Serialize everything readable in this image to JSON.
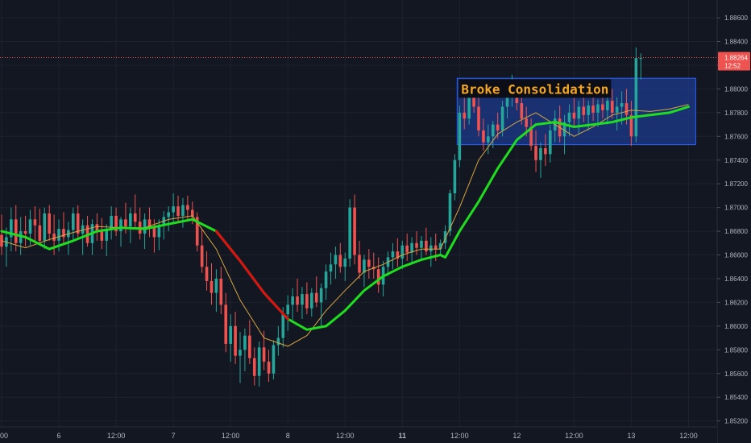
{
  "chart_data": {
    "type": "candlestick",
    "title": "",
    "y_axis": {
      "position": "right",
      "ylim": [
        1.8515,
        1.8875
      ],
      "ticks": [
        "1.88600",
        "1.88400",
        "1.88200",
        "1.88000",
        "1.87800",
        "1.87600",
        "1.87400",
        "1.87200",
        "1.87000",
        "1.86800",
        "1.86600",
        "1.86400",
        "1.86200",
        "1.86000",
        "1.85800",
        "1.85600",
        "1.85400",
        "1.85200"
      ]
    },
    "x_axis": {
      "ticks": [
        {
          "label": "00",
          "t": 0,
          "bold": false
        },
        {
          "label": "6",
          "t": 12,
          "bold": false
        },
        {
          "label": "12:00",
          "t": 24,
          "bold": false
        },
        {
          "label": "7",
          "t": 36,
          "bold": false
        },
        {
          "label": "12:00",
          "t": 48,
          "bold": false
        },
        {
          "label": "8",
          "t": 60,
          "bold": false
        },
        {
          "label": "12:00",
          "t": 72,
          "bold": false
        },
        {
          "label": "11",
          "t": 84,
          "bold": true
        },
        {
          "label": "12:00",
          "t": 96,
          "bold": false
        },
        {
          "label": "12",
          "t": 108,
          "bold": false
        },
        {
          "label": "12:00",
          "t": 120,
          "bold": false
        },
        {
          "label": "13",
          "t": 132,
          "bold": false
        },
        {
          "label": "12:00",
          "t": 144,
          "bold": false
        }
      ]
    },
    "grid": true,
    "last_price": {
      "value": "1.88264",
      "countdown": "12:52"
    },
    "ohlc": [
      [
        1.8677,
        1.8694,
        1.866,
        1.8667
      ],
      [
        1.8667,
        1.8683,
        1.865,
        1.8675
      ],
      [
        1.8675,
        1.87,
        1.8663,
        1.869
      ],
      [
        1.869,
        1.8702,
        1.8663,
        1.867
      ],
      [
        1.867,
        1.8692,
        1.866,
        1.868
      ],
      [
        1.868,
        1.8693,
        1.8667,
        1.8678
      ],
      [
        1.8678,
        1.8698,
        1.8668,
        1.869
      ],
      [
        1.869,
        1.8701,
        1.8672,
        1.8685
      ],
      [
        1.8685,
        1.8699,
        1.8668,
        1.8672
      ],
      [
        1.8672,
        1.87,
        1.8665,
        1.8695
      ],
      [
        1.8695,
        1.8702,
        1.8672,
        1.8678
      ],
      [
        1.8678,
        1.8694,
        1.866,
        1.8672
      ],
      [
        1.8672,
        1.869,
        1.8663,
        1.8682
      ],
      [
        1.8682,
        1.8696,
        1.867,
        1.8675
      ],
      [
        1.8675,
        1.8688,
        1.866,
        1.8681
      ],
      [
        1.8681,
        1.87,
        1.8673,
        1.8695
      ],
      [
        1.8695,
        1.8702,
        1.8675,
        1.8678
      ],
      [
        1.8678,
        1.869,
        1.866,
        1.8685
      ],
      [
        1.8685,
        1.8693,
        1.8667,
        1.867
      ],
      [
        1.867,
        1.869,
        1.866,
        1.8686
      ],
      [
        1.8686,
        1.8695,
        1.8672,
        1.868
      ],
      [
        1.868,
        1.8691,
        1.8665,
        1.8672
      ],
      [
        1.8672,
        1.8686,
        1.8659,
        1.8682
      ],
      [
        1.8682,
        1.8701,
        1.8673,
        1.8693
      ],
      [
        1.8693,
        1.87,
        1.8676,
        1.868
      ],
      [
        1.868,
        1.8692,
        1.8667,
        1.869
      ],
      [
        1.869,
        1.8704,
        1.8678,
        1.8684
      ],
      [
        1.8684,
        1.87,
        1.867,
        1.8695
      ],
      [
        1.8695,
        1.8711,
        1.8682,
        1.8688
      ],
      [
        1.8688,
        1.87,
        1.8673,
        1.8678
      ],
      [
        1.8678,
        1.8695,
        1.8665,
        1.869
      ],
      [
        1.869,
        1.87,
        1.8675,
        1.8683
      ],
      [
        1.8683,
        1.869,
        1.8662,
        1.8675
      ],
      [
        1.8675,
        1.869,
        1.8664,
        1.8685
      ],
      [
        1.8685,
        1.8697,
        1.8673,
        1.8692
      ],
      [
        1.8692,
        1.8701,
        1.868,
        1.8696
      ],
      [
        1.8696,
        1.8712,
        1.8686,
        1.8701
      ],
      [
        1.8701,
        1.871,
        1.8688,
        1.8693
      ],
      [
        1.8693,
        1.8708,
        1.8683,
        1.8702
      ],
      [
        1.8702,
        1.871,
        1.869,
        1.8698
      ],
      [
        1.8698,
        1.8705,
        1.8686,
        1.8692
      ],
      [
        1.8692,
        1.8696,
        1.8663,
        1.8668
      ],
      [
        1.8668,
        1.8682,
        1.8645,
        1.865
      ],
      [
        1.865,
        1.8663,
        1.863,
        1.8638
      ],
      [
        1.8638,
        1.8653,
        1.8618,
        1.8628
      ],
      [
        1.8628,
        1.8648,
        1.8612,
        1.864
      ],
      [
        1.864,
        1.865,
        1.861,
        1.8618
      ],
      [
        1.8618,
        1.8628,
        1.8578,
        1.8585
      ],
      [
        1.8585,
        1.861,
        1.857,
        1.86
      ],
      [
        1.86,
        1.8612,
        1.8568,
        1.8575
      ],
      [
        1.8575,
        1.8595,
        1.8552,
        1.858
      ],
      [
        1.858,
        1.8598,
        1.8562,
        1.8592
      ],
      [
        1.8592,
        1.8605,
        1.8568,
        1.8573
      ],
      [
        1.8573,
        1.8582,
        1.855,
        1.8558
      ],
      [
        1.8558,
        1.8587,
        1.8549,
        1.8582
      ],
      [
        1.8582,
        1.8596,
        1.8563,
        1.857
      ],
      [
        1.857,
        1.858,
        1.8553,
        1.856
      ],
      [
        1.856,
        1.8588,
        1.8555,
        1.8584
      ],
      [
        1.8584,
        1.86,
        1.8575,
        1.859
      ],
      [
        1.859,
        1.8616,
        1.8582,
        1.861
      ],
      [
        1.861,
        1.8626,
        1.8596,
        1.8618
      ],
      [
        1.8618,
        1.8632,
        1.8605,
        1.8625
      ],
      [
        1.8625,
        1.864,
        1.8612,
        1.8618
      ],
      [
        1.8618,
        1.8633,
        1.8606,
        1.8627
      ],
      [
        1.8627,
        1.8637,
        1.861,
        1.8615
      ],
      [
        1.8615,
        1.8632,
        1.8608,
        1.8628
      ],
      [
        1.8628,
        1.8642,
        1.8616,
        1.862
      ],
      [
        1.862,
        1.8636,
        1.86,
        1.8632
      ],
      [
        1.8632,
        1.8652,
        1.8622,
        1.8646
      ],
      [
        1.8646,
        1.8662,
        1.8635,
        1.8652
      ],
      [
        1.8652,
        1.8667,
        1.864,
        1.866
      ],
      [
        1.866,
        1.867,
        1.8645,
        1.865
      ],
      [
        1.865,
        1.8662,
        1.8638,
        1.8657
      ],
      [
        1.8657,
        1.8707,
        1.865,
        1.87
      ],
      [
        1.87,
        1.8711,
        1.8652,
        1.866
      ],
      [
        1.866,
        1.8672,
        1.864,
        1.8645
      ],
      [
        1.8645,
        1.866,
        1.8633,
        1.8656
      ],
      [
        1.8656,
        1.8665,
        1.864,
        1.865
      ],
      [
        1.865,
        1.8662,
        1.864,
        1.8648
      ],
      [
        1.8648,
        1.8658,
        1.8628,
        1.8635
      ],
      [
        1.8635,
        1.8655,
        1.8625,
        1.865
      ],
      [
        1.865,
        1.8663,
        1.8642,
        1.8658
      ],
      [
        1.8658,
        1.867,
        1.8648,
        1.8663
      ],
      [
        1.8663,
        1.8674,
        1.865,
        1.8657
      ],
      [
        1.8657,
        1.8672,
        1.8648,
        1.8668
      ],
      [
        1.8668,
        1.8678,
        1.8655,
        1.8662
      ],
      [
        1.8662,
        1.8675,
        1.8652,
        1.867
      ],
      [
        1.867,
        1.868,
        1.866,
        1.8666
      ],
      [
        1.8666,
        1.8676,
        1.8655,
        1.8672
      ],
      [
        1.8672,
        1.8683,
        1.866,
        1.8663
      ],
      [
        1.8663,
        1.8675,
        1.865,
        1.8668
      ],
      [
        1.8668,
        1.8678,
        1.8655,
        1.8665
      ],
      [
        1.8665,
        1.8673,
        1.866,
        1.867
      ],
      [
        1.867,
        1.8685,
        1.8665,
        1.868
      ],
      [
        1.868,
        1.8715,
        1.8676,
        1.8712
      ],
      [
        1.8712,
        1.8745,
        1.8706,
        1.874
      ],
      [
        1.874,
        1.8786,
        1.8734,
        1.878
      ],
      [
        1.878,
        1.8795,
        1.8766,
        1.8775
      ],
      [
        1.8775,
        1.88,
        1.877,
        1.8795
      ],
      [
        1.8795,
        1.8805,
        1.878,
        1.8785
      ],
      [
        1.8785,
        1.8796,
        1.876,
        1.8765
      ],
      [
        1.8765,
        1.8775,
        1.8748,
        1.8755
      ],
      [
        1.8755,
        1.877,
        1.8745,
        1.876
      ],
      [
        1.876,
        1.8773,
        1.875,
        1.877
      ],
      [
        1.877,
        1.878,
        1.8758,
        1.8765
      ],
      [
        1.8765,
        1.879,
        1.876,
        1.8785
      ],
      [
        1.8785,
        1.88,
        1.8775,
        1.8795
      ],
      [
        1.8795,
        1.8812,
        1.8785,
        1.88
      ],
      [
        1.88,
        1.8808,
        1.8782,
        1.8788
      ],
      [
        1.8788,
        1.88,
        1.877,
        1.8775
      ],
      [
        1.8775,
        1.8785,
        1.876,
        1.8768
      ],
      [
        1.8768,
        1.8775,
        1.8748,
        1.8752
      ],
      [
        1.8752,
        1.8765,
        1.873,
        1.874
      ],
      [
        1.874,
        1.8755,
        1.8725,
        1.875
      ],
      [
        1.875,
        1.8762,
        1.8735,
        1.8745
      ],
      [
        1.8745,
        1.877,
        1.8738,
        1.8765
      ],
      [
        1.8765,
        1.8782,
        1.8755,
        1.8775
      ],
      [
        1.8775,
        1.8786,
        1.8755,
        1.876
      ],
      [
        1.876,
        1.8778,
        1.8745,
        1.8772
      ],
      [
        1.8772,
        1.8787,
        1.876,
        1.878
      ],
      [
        1.878,
        1.8793,
        1.8768,
        1.8775
      ],
      [
        1.8775,
        1.879,
        1.8762,
        1.8785
      ],
      [
        1.8785,
        1.8795,
        1.8772,
        1.8778
      ],
      [
        1.8778,
        1.879,
        1.8765,
        1.8786
      ],
      [
        1.8786,
        1.8795,
        1.8773,
        1.878
      ],
      [
        1.878,
        1.8791,
        1.8768,
        1.8787
      ],
      [
        1.8787,
        1.8798,
        1.8775,
        1.8782
      ],
      [
        1.8782,
        1.8795,
        1.877,
        1.879
      ],
      [
        1.879,
        1.88,
        1.8775,
        1.878
      ],
      [
        1.878,
        1.8793,
        1.8765,
        1.8785
      ],
      [
        1.8785,
        1.8798,
        1.877,
        1.8788
      ],
      [
        1.8788,
        1.88,
        1.877,
        1.8778
      ],
      [
        1.8778,
        1.879,
        1.8752,
        1.876
      ],
      [
        1.876,
        1.8835,
        1.8755,
        1.8826
      ],
      [
        1.8826,
        1.883,
        1.8808,
        1.8826
      ]
    ],
    "ema_slow": [
      [
        0,
        1.868
      ],
      [
        5,
        1.8675
      ],
      [
        10,
        1.8665
      ],
      [
        15,
        1.8672
      ],
      [
        20,
        1.868
      ],
      [
        25,
        1.8683
      ],
      [
        30,
        1.8682
      ],
      [
        35,
        1.8686
      ],
      [
        40,
        1.869
      ],
      [
        45,
        1.868
      ],
      [
        50,
        1.8655
      ],
      [
        55,
        1.8628
      ],
      [
        60,
        1.8606
      ],
      [
        64,
        1.8597
      ],
      [
        68,
        1.86
      ],
      [
        72,
        1.8613
      ],
      [
        76,
        1.863
      ],
      [
        80,
        1.8642
      ],
      [
        84,
        1.865
      ],
      [
        88,
        1.8656
      ],
      [
        92,
        1.866
      ],
      [
        93,
        1.8658
      ],
      [
        96,
        1.868
      ],
      [
        100,
        1.8705
      ],
      [
        104,
        1.8733
      ],
      [
        108,
        1.8757
      ],
      [
        112,
        1.877
      ],
      [
        116,
        1.8772
      ],
      [
        120,
        1.8768
      ],
      [
        124,
        1.877
      ],
      [
        128,
        1.8772
      ],
      [
        132,
        1.8776
      ],
      [
        136,
        1.8778
      ],
      [
        140,
        1.878
      ],
      [
        144,
        1.8785
      ]
    ],
    "ema_fast": [
      [
        0,
        1.8672
      ],
      [
        5,
        1.8666
      ],
      [
        10,
        1.8673
      ],
      [
        15,
        1.8679
      ],
      [
        20,
        1.8684
      ],
      [
        25,
        1.8683
      ],
      [
        30,
        1.8683
      ],
      [
        35,
        1.869
      ],
      [
        40,
        1.8693
      ],
      [
        45,
        1.8665
      ],
      [
        50,
        1.8622
      ],
      [
        55,
        1.859
      ],
      [
        60,
        1.8583
      ],
      [
        64,
        1.8592
      ],
      [
        68,
        1.8613
      ],
      [
        72,
        1.863
      ],
      [
        76,
        1.8646
      ],
      [
        80,
        1.8652
      ],
      [
        84,
        1.866
      ],
      [
        88,
        1.8665
      ],
      [
        92,
        1.8665
      ],
      [
        96,
        1.87
      ],
      [
        100,
        1.874
      ],
      [
        104,
        1.8762
      ],
      [
        108,
        1.8772
      ],
      [
        112,
        1.878
      ],
      [
        116,
        1.877
      ],
      [
        120,
        1.876
      ],
      [
        124,
        1.8768
      ],
      [
        128,
        1.8778
      ],
      [
        132,
        1.8782
      ],
      [
        136,
        1.8781
      ],
      [
        140,
        1.8783
      ],
      [
        144,
        1.8787
      ]
    ],
    "ema_slow_red_ranges": [
      [
        0,
        4
      ],
      [
        42,
        62
      ]
    ],
    "consolidation_box": {
      "t1": 96,
      "t2": 146,
      "y_top": 1.8809,
      "y_bottom": 1.8753
    },
    "annotation": {
      "text": "Broke Consolidation",
      "t": 96,
      "y": 1.88
    }
  },
  "colors": {
    "background": "#131722",
    "grid": "#1e222d",
    "up": "#26a69a",
    "down": "#ef5350",
    "ema_green": "#1fdd1f",
    "ema_red": "#e01010",
    "ema_fast": "#d9a541",
    "axis_text": "#b2b5be",
    "box_fill": "#1c3b8c",
    "box_stroke": "#2962ff",
    "annotation_text": "#f5a623",
    "annotation_bg": "#0b0e16",
    "price_line": "#ef5350"
  }
}
